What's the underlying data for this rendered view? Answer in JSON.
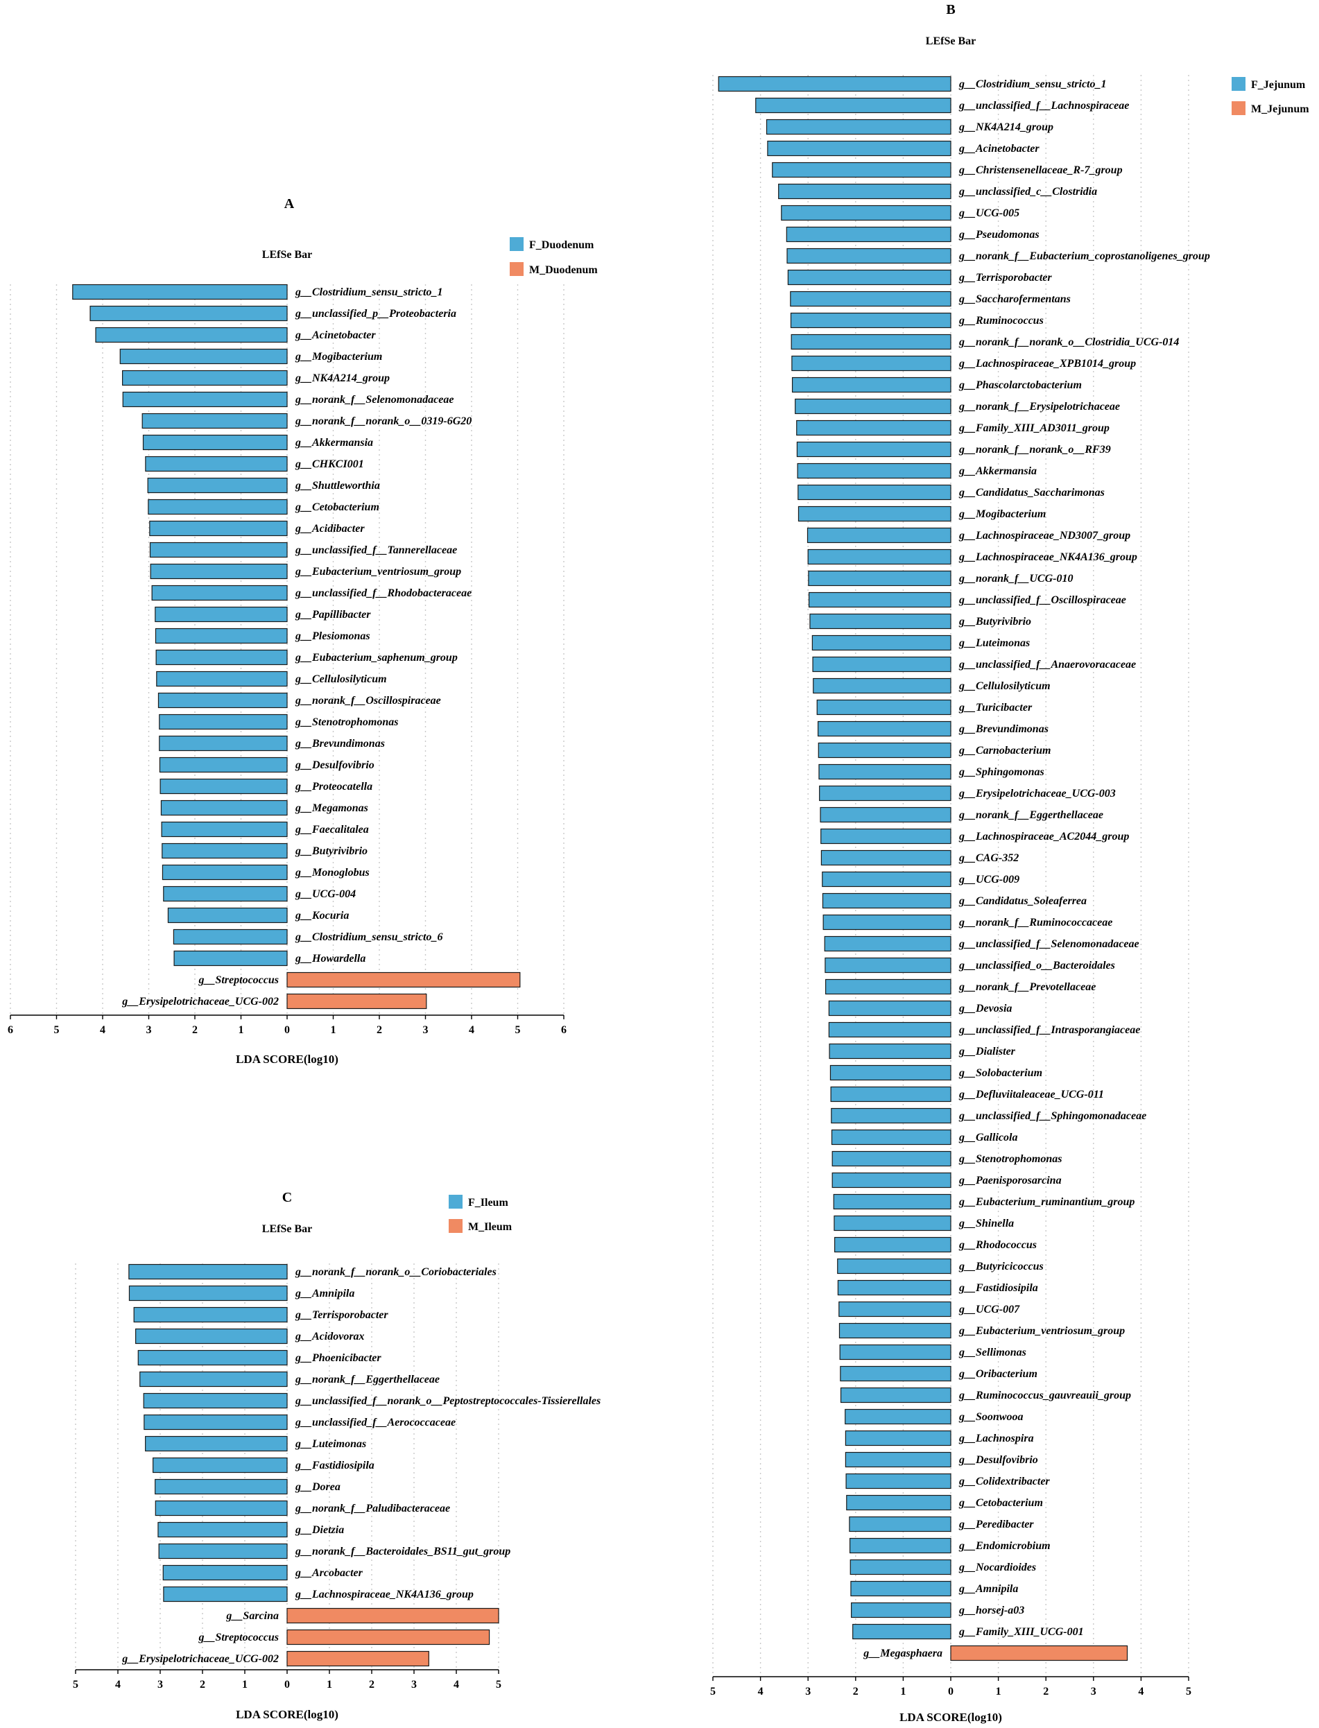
{
  "colors": {
    "F": "#4eabd6",
    "M": "#f08a62"
  },
  "chart_data": [
    {
      "letter": "A",
      "type": "bar",
      "orientation": "horizontal",
      "title": "LEfSe Bar",
      "xlabel": "LDA SCORE(log10)",
      "xlim": [
        -6,
        6
      ],
      "x_ticks": [
        "6",
        "5",
        "4",
        "3",
        "2",
        "1",
        "0",
        "1",
        "2",
        "3",
        "4",
        "5",
        "6"
      ],
      "legend": [
        {
          "name": "F_Duodenum",
          "color": "#4eabd6"
        },
        {
          "name": "M_Duodenum",
          "color": "#f08a62"
        }
      ],
      "bars": [
        {
          "label": "g__Clostridium_sensu_stricto_1",
          "value": 4.65,
          "group": "F"
        },
        {
          "label": "g__unclassified_p__Proteobacteria",
          "value": 4.27,
          "group": "F"
        },
        {
          "label": "g__Acinetobacter",
          "value": 4.15,
          "group": "F"
        },
        {
          "label": "g__Mogibacterium",
          "value": 3.62,
          "group": "F"
        },
        {
          "label": "g__NK4A214_group",
          "value": 3.57,
          "group": "F"
        },
        {
          "label": "g__norank_f__Selenomonadaceae",
          "value": 3.56,
          "group": "F"
        },
        {
          "label": "g__norank_f__norank_o__0319-6G20",
          "value": 3.14,
          "group": "F"
        },
        {
          "label": "g__Akkermansia",
          "value": 3.12,
          "group": "F"
        },
        {
          "label": "g__CHKCI001",
          "value": 3.07,
          "group": "F"
        },
        {
          "label": "g__Shuttleworthia",
          "value": 3.02,
          "group": "F"
        },
        {
          "label": "g__Cetobacterium",
          "value": 3.01,
          "group": "F"
        },
        {
          "label": "g__Acidibacter",
          "value": 2.98,
          "group": "F"
        },
        {
          "label": "g__unclassified_f__Tannerellaceae",
          "value": 2.97,
          "group": "F"
        },
        {
          "label": "g__Eubacterium_ventriosum_group",
          "value": 2.96,
          "group": "F"
        },
        {
          "label": "g__unclassified_f__Rhodobacteraceae",
          "value": 2.93,
          "group": "F"
        },
        {
          "label": "g__Papillibacter",
          "value": 2.86,
          "group": "F"
        },
        {
          "label": "g__Plesiomonas",
          "value": 2.85,
          "group": "F"
        },
        {
          "label": "g__Eubacterium_saphenum_group",
          "value": 2.84,
          "group": "F"
        },
        {
          "label": "g__Cellulosilyticum",
          "value": 2.83,
          "group": "F"
        },
        {
          "label": "g__norank_f__Oscillospiraceae",
          "value": 2.79,
          "group": "F"
        },
        {
          "label": "g__Stenotrophomonas",
          "value": 2.77,
          "group": "F"
        },
        {
          "label": "g__Brevundimonas",
          "value": 2.77,
          "group": "F"
        },
        {
          "label": "g__Desulfovibrio",
          "value": 2.76,
          "group": "F"
        },
        {
          "label": "g__Proteocatella",
          "value": 2.75,
          "group": "F"
        },
        {
          "label": "g__Megamonas",
          "value": 2.73,
          "group": "F"
        },
        {
          "label": "g__Faecalitalea",
          "value": 2.72,
          "group": "F"
        },
        {
          "label": "g__Butyrivibrio",
          "value": 2.71,
          "group": "F"
        },
        {
          "label": "g__Monoglobus",
          "value": 2.7,
          "group": "F"
        },
        {
          "label": "g__UCG-004",
          "value": 2.68,
          "group": "F"
        },
        {
          "label": "g__Kocuria",
          "value": 2.58,
          "group": "F"
        },
        {
          "label": "g__Clostridium_sensu_stricto_6",
          "value": 2.46,
          "group": "F"
        },
        {
          "label": "g__Howardella",
          "value": 2.45,
          "group": "F"
        },
        {
          "label": "g__Streptococcus",
          "value": 5.05,
          "group": "M"
        },
        {
          "label": "g__Erysipelotrichaceae_UCG-002",
          "value": 3.02,
          "group": "M"
        }
      ]
    },
    {
      "letter": "B",
      "type": "bar",
      "orientation": "horizontal",
      "title": "LEfSe Bar",
      "xlabel": "LDA SCORE(log10)",
      "xlim": [
        -5,
        5
      ],
      "x_ticks": [
        "5",
        "4",
        "3",
        "2",
        "1",
        "0",
        "1",
        "2",
        "3",
        "4",
        "5"
      ],
      "legend": [
        {
          "name": "F_Jejunum",
          "color": "#4eabd6"
        },
        {
          "name": "M_Jejunum",
          "color": "#f08a62"
        }
      ],
      "bars": [
        {
          "label": "g__Clostridium_sensu_stricto_1",
          "value": 4.88,
          "group": "F"
        },
        {
          "label": "g__unclassified_f__Lachnospiraceae",
          "value": 4.1,
          "group": "F"
        },
        {
          "label": "g__NK4A214_group",
          "value": 3.87,
          "group": "F"
        },
        {
          "label": "g__Acinetobacter",
          "value": 3.85,
          "group": "F"
        },
        {
          "label": "g__Christensenellaceae_R-7_group",
          "value": 3.75,
          "group": "F"
        },
        {
          "label": "g__unclassified_c__Clostridia",
          "value": 3.62,
          "group": "F"
        },
        {
          "label": "g__UCG-005",
          "value": 3.56,
          "group": "F"
        },
        {
          "label": "g__Pseudomonas",
          "value": 3.45,
          "group": "F"
        },
        {
          "label": "g__norank_f__Eubacterium_coprostanoligenes_group",
          "value": 3.44,
          "group": "F"
        },
        {
          "label": "g__Terrisporobacter",
          "value": 3.42,
          "group": "F"
        },
        {
          "label": "g__Saccharofermentans",
          "value": 3.37,
          "group": "F"
        },
        {
          "label": "g__Ruminococcus",
          "value": 3.36,
          "group": "F"
        },
        {
          "label": "g__norank_f__norank_o__Clostridia_UCG-014",
          "value": 3.35,
          "group": "F"
        },
        {
          "label": "g__Lachnospiraceae_XPB1014_group",
          "value": 3.34,
          "group": "F"
        },
        {
          "label": "g__Phascolarctobacterium",
          "value": 3.33,
          "group": "F"
        },
        {
          "label": "g__norank_f__Erysipelotrichaceae",
          "value": 3.27,
          "group": "F"
        },
        {
          "label": "g__Family_XIII_AD3011_group",
          "value": 3.24,
          "group": "F"
        },
        {
          "label": "g__norank_f__norank_o__RF39",
          "value": 3.23,
          "group": "F"
        },
        {
          "label": "g__Akkermansia",
          "value": 3.22,
          "group": "F"
        },
        {
          "label": "g__Candidatus_Saccharimonas",
          "value": 3.21,
          "group": "F"
        },
        {
          "label": "g__Mogibacterium",
          "value": 3.2,
          "group": "F"
        },
        {
          "label": "g__Lachnospiraceae_ND3007_group",
          "value": 3.01,
          "group": "F"
        },
        {
          "label": "g__Lachnospiraceae_NK4A136_group",
          "value": 3.0,
          "group": "F"
        },
        {
          "label": "g__norank_f__UCG-010",
          "value": 2.99,
          "group": "F"
        },
        {
          "label": "g__unclassified_f__Oscillospiraceae",
          "value": 2.98,
          "group": "F"
        },
        {
          "label": "g__Butyrivibrio",
          "value": 2.96,
          "group": "F"
        },
        {
          "label": "g__Luteimonas",
          "value": 2.91,
          "group": "F"
        },
        {
          "label": "g__unclassified_f__Anaerovoracaceae",
          "value": 2.9,
          "group": "F"
        },
        {
          "label": "g__Cellulosilyticum",
          "value": 2.89,
          "group": "F"
        },
        {
          "label": "g__Turicibacter",
          "value": 2.81,
          "group": "F"
        },
        {
          "label": "g__Brevundimonas",
          "value": 2.79,
          "group": "F"
        },
        {
          "label": "g__Carnobacterium",
          "value": 2.78,
          "group": "F"
        },
        {
          "label": "g__Sphingomonas",
          "value": 2.77,
          "group": "F"
        },
        {
          "label": "g__Erysipelotrichaceae_UCG-003",
          "value": 2.76,
          "group": "F"
        },
        {
          "label": "g__norank_f__Eggerthellaceae",
          "value": 2.74,
          "group": "F"
        },
        {
          "label": "g__Lachnospiraceae_AC2044_group",
          "value": 2.73,
          "group": "F"
        },
        {
          "label": "g__CAG-352",
          "value": 2.72,
          "group": "F"
        },
        {
          "label": "g__UCG-009",
          "value": 2.7,
          "group": "F"
        },
        {
          "label": "g__Candidatus_Soleaferrea",
          "value": 2.69,
          "group": "F"
        },
        {
          "label": "g__norank_f__Ruminococcaceae",
          "value": 2.68,
          "group": "F"
        },
        {
          "label": "g__unclassified_f__Selenomonadaceae",
          "value": 2.65,
          "group": "F"
        },
        {
          "label": "g__unclassified_o__Bacteroidales",
          "value": 2.64,
          "group": "F"
        },
        {
          "label": "g__norank_f__Prevotellaceae",
          "value": 2.63,
          "group": "F"
        },
        {
          "label": "g__Devosia",
          "value": 2.56,
          "group": "F"
        },
        {
          "label": "g__unclassified_f__Intrasporangiaceae",
          "value": 2.56,
          "group": "F"
        },
        {
          "label": "g__Dialister",
          "value": 2.55,
          "group": "F"
        },
        {
          "label": "g__Solobacterium",
          "value": 2.53,
          "group": "F"
        },
        {
          "label": "g__Defluviitaleaceae_UCG-011",
          "value": 2.52,
          "group": "F"
        },
        {
          "label": "g__unclassified_f__Sphingomonadaceae",
          "value": 2.51,
          "group": "F"
        },
        {
          "label": "g__Gallicola",
          "value": 2.5,
          "group": "F"
        },
        {
          "label": "g__Stenotrophomonas",
          "value": 2.49,
          "group": "F"
        },
        {
          "label": "g__Paenisporosarcina",
          "value": 2.49,
          "group": "F"
        },
        {
          "label": "g__Eubacterium_ruminantium_group",
          "value": 2.46,
          "group": "F"
        },
        {
          "label": "g__Shinella",
          "value": 2.45,
          "group": "F"
        },
        {
          "label": "g__Rhodococcus",
          "value": 2.44,
          "group": "F"
        },
        {
          "label": "g__Butyricicoccus",
          "value": 2.38,
          "group": "F"
        },
        {
          "label": "g__Fastidiosipila",
          "value": 2.37,
          "group": "F"
        },
        {
          "label": "g__UCG-007",
          "value": 2.35,
          "group": "F"
        },
        {
          "label": "g__Eubacterium_ventriosum_group",
          "value": 2.34,
          "group": "F"
        },
        {
          "label": "g__Sellimonas",
          "value": 2.33,
          "group": "F"
        },
        {
          "label": "g__Oribacterium",
          "value": 2.32,
          "group": "F"
        },
        {
          "label": "g__Ruminococcus_gauvreauii_group",
          "value": 2.31,
          "group": "F"
        },
        {
          "label": "g__Soonwooa",
          "value": 2.22,
          "group": "F"
        },
        {
          "label": "g__Lachnospira",
          "value": 2.21,
          "group": "F"
        },
        {
          "label": "g__Desulfovibrio",
          "value": 2.21,
          "group": "F"
        },
        {
          "label": "g__Colidextribacter",
          "value": 2.2,
          "group": "F"
        },
        {
          "label": "g__Cetobacterium",
          "value": 2.19,
          "group": "F"
        },
        {
          "label": "g__Peredibacter",
          "value": 2.13,
          "group": "F"
        },
        {
          "label": "g__Endomicrobium",
          "value": 2.12,
          "group": "F"
        },
        {
          "label": "g__Nocardioides",
          "value": 2.11,
          "group": "F"
        },
        {
          "label": "g__Amnipila",
          "value": 2.1,
          "group": "F"
        },
        {
          "label": "g__horsej-a03",
          "value": 2.09,
          "group": "F"
        },
        {
          "label": "g__Family_XIII_UCG-001",
          "value": 2.06,
          "group": "F"
        },
        {
          "label": "g__Megasphaera",
          "value": 3.71,
          "group": "M"
        }
      ]
    },
    {
      "letter": "C",
      "type": "bar",
      "orientation": "horizontal",
      "title": "LEfSe Bar",
      "xlabel": "LDA SCORE(log10)",
      "xlim": [
        -5,
        5
      ],
      "x_ticks": [
        "5",
        "4",
        "3",
        "2",
        "1",
        "0",
        "1",
        "2",
        "3",
        "4",
        "5"
      ],
      "legend": [
        {
          "name": "F_Ileum",
          "color": "#4eabd6"
        },
        {
          "name": "M_Ileum",
          "color": "#f08a62"
        }
      ],
      "bars": [
        {
          "label": "g__norank_f__norank_o__Coriobacteriales",
          "value": 3.74,
          "group": "F"
        },
        {
          "label": "g__Amnipila",
          "value": 3.73,
          "group": "F"
        },
        {
          "label": "g__Terrisporobacter",
          "value": 3.62,
          "group": "F"
        },
        {
          "label": "g__Acidovorax",
          "value": 3.58,
          "group": "F"
        },
        {
          "label": "g__Phoenicibacter",
          "value": 3.52,
          "group": "F"
        },
        {
          "label": "g__norank_f__Eggerthellaceae",
          "value": 3.48,
          "group": "F"
        },
        {
          "label": "g__unclassified_f__norank_o__Peptostreptococcales-Tissierellales",
          "value": 3.39,
          "group": "F"
        },
        {
          "label": "g__unclassified_f__Aerococcaceae",
          "value": 3.38,
          "group": "F"
        },
        {
          "label": "g__Luteimonas",
          "value": 3.35,
          "group": "F"
        },
        {
          "label": "g__Fastidiosipila",
          "value": 3.17,
          "group": "F"
        },
        {
          "label": "g__Dorea",
          "value": 3.12,
          "group": "F"
        },
        {
          "label": "g__norank_f__Paludibacteraceae",
          "value": 3.11,
          "group": "F"
        },
        {
          "label": "g__Dietzia",
          "value": 3.05,
          "group": "F"
        },
        {
          "label": "g__norank_f__Bacteroidales_BS11_gut_group",
          "value": 3.03,
          "group": "F"
        },
        {
          "label": "g__Arcobacter",
          "value": 2.93,
          "group": "F"
        },
        {
          "label": "g__Lachnospiraceae_NK4A136_group",
          "value": 2.92,
          "group": "F"
        },
        {
          "label": "g__Sarcina",
          "value": 5.0,
          "group": "M"
        },
        {
          "label": "g__Streptococcus",
          "value": 4.78,
          "group": "M"
        },
        {
          "label": "g__Erysipelotrichaceae_UCG-002",
          "value": 3.35,
          "group": "M"
        }
      ]
    }
  ]
}
